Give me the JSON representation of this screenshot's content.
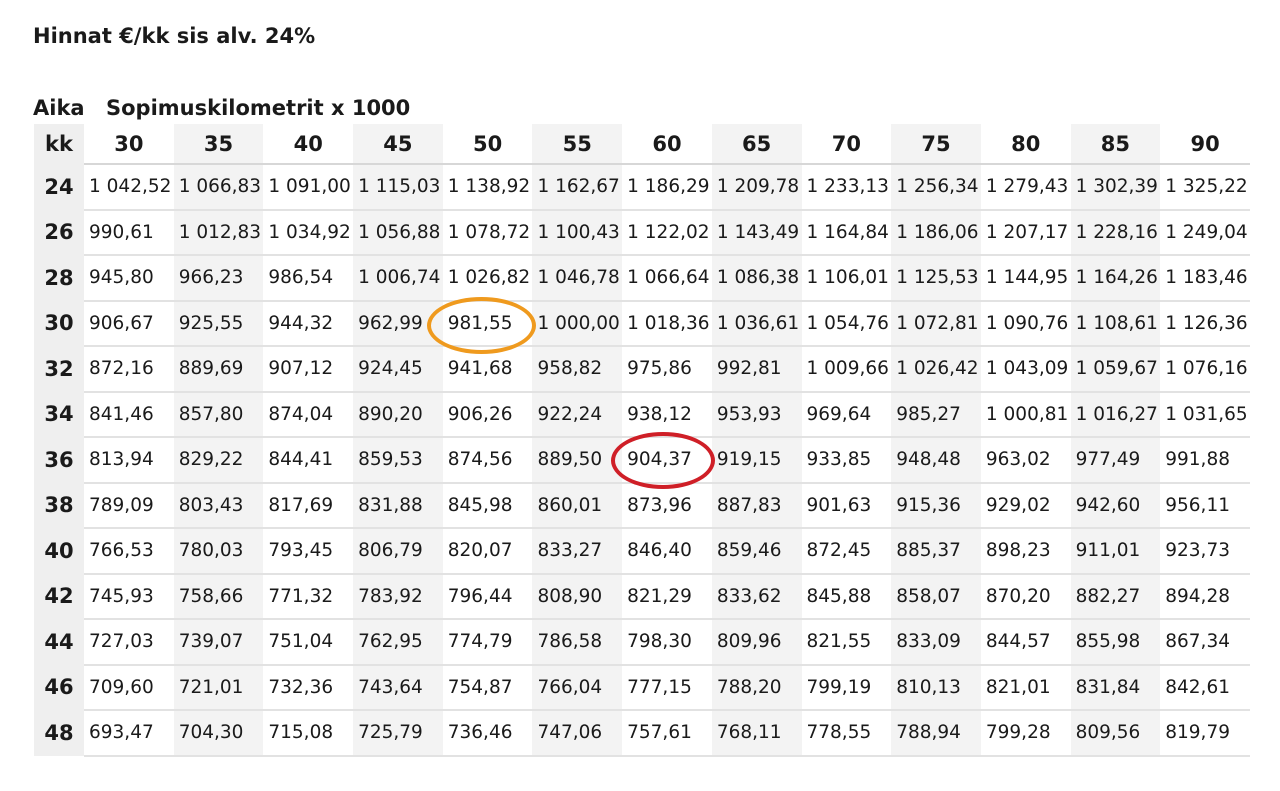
{
  "title": "Hinnat €/kk sis alv. 24%",
  "time_label": "Aika",
  "km_label": "Sopimuskilometrit x 1000",
  "row_header": "kk",
  "columns": [
    "30",
    "35",
    "40",
    "45",
    "50",
    "55",
    "60",
    "65",
    "70",
    "75",
    "80",
    "85",
    "90"
  ],
  "rows": [
    {
      "kk": "24",
      "values": [
        "1 042,52",
        "1 066,83",
        "1 091,00",
        "1 115,03",
        "1 138,92",
        "1 162,67",
        "1 186,29",
        "1 209,78",
        "1 233,13",
        "1 256,34",
        "1 279,43",
        "1 302,39",
        "1 325,22"
      ]
    },
    {
      "kk": "26",
      "values": [
        "990,61",
        "1 012,83",
        "1 034,92",
        "1 056,88",
        "1 078,72",
        "1 100,43",
        "1 122,02",
        "1 143,49",
        "1 164,84",
        "1 186,06",
        "1 207,17",
        "1 228,16",
        "1 249,04"
      ]
    },
    {
      "kk": "28",
      "values": [
        "945,80",
        "966,23",
        "986,54",
        "1 006,74",
        "1 026,82",
        "1 046,78",
        "1 066,64",
        "1 086,38",
        "1 106,01",
        "1 125,53",
        "1 144,95",
        "1 164,26",
        "1 183,46"
      ]
    },
    {
      "kk": "30",
      "values": [
        "906,67",
        "925,55",
        "944,32",
        "962,99",
        "981,55",
        "1 000,00",
        "1 018,36",
        "1 036,61",
        "1 054,76",
        "1 072,81",
        "1 090,76",
        "1 108,61",
        "1 126,36"
      ]
    },
    {
      "kk": "32",
      "values": [
        "872,16",
        "889,69",
        "907,12",
        "924,45",
        "941,68",
        "958,82",
        "975,86",
        "992,81",
        "1 009,66",
        "1 026,42",
        "1 043,09",
        "1 059,67",
        "1 076,16"
      ]
    },
    {
      "kk": "34",
      "values": [
        "841,46",
        "857,80",
        "874,04",
        "890,20",
        "906,26",
        "922,24",
        "938,12",
        "953,93",
        "969,64",
        "985,27",
        "1 000,81",
        "1 016,27",
        "1 031,65"
      ]
    },
    {
      "kk": "36",
      "values": [
        "813,94",
        "829,22",
        "844,41",
        "859,53",
        "874,56",
        "889,50",
        "904,37",
        "919,15",
        "933,85",
        "948,48",
        "963,02",
        "977,49",
        "991,88"
      ]
    },
    {
      "kk": "38",
      "values": [
        "789,09",
        "803,43",
        "817,69",
        "831,88",
        "845,98",
        "860,01",
        "873,96",
        "887,83",
        "901,63",
        "915,36",
        "929,02",
        "942,60",
        "956,11"
      ]
    },
    {
      "kk": "40",
      "values": [
        "766,53",
        "780,03",
        "793,45",
        "806,79",
        "820,07",
        "833,27",
        "846,40",
        "859,46",
        "872,45",
        "885,37",
        "898,23",
        "911,01",
        "923,73"
      ]
    },
    {
      "kk": "42",
      "values": [
        "745,93",
        "758,66",
        "771,32",
        "783,92",
        "796,44",
        "808,90",
        "821,29",
        "833,62",
        "845,88",
        "858,07",
        "870,20",
        "882,27",
        "894,28"
      ]
    },
    {
      "kk": "44",
      "values": [
        "727,03",
        "739,07",
        "751,04",
        "762,95",
        "774,79",
        "786,58",
        "798,30",
        "809,96",
        "821,55",
        "833,09",
        "844,57",
        "855,98",
        "867,34"
      ]
    },
    {
      "kk": "46",
      "values": [
        "709,60",
        "721,01",
        "732,36",
        "743,64",
        "754,87",
        "766,04",
        "777,15",
        "788,20",
        "799,19",
        "810,13",
        "821,01",
        "831,84",
        "842,61"
      ]
    },
    {
      "kk": "48",
      "values": [
        "693,47",
        "704,30",
        "715,08",
        "725,79",
        "736,46",
        "747,06",
        "757,61",
        "768,11",
        "778,55",
        "788,94",
        "799,28",
        "809,56",
        "819,79"
      ]
    }
  ],
  "highlights": {
    "orange": {
      "kk": "30",
      "km": "50",
      "color": "#ef9a1e"
    },
    "red": {
      "kk": "36",
      "km": "60",
      "color": "#cf1f27"
    }
  }
}
